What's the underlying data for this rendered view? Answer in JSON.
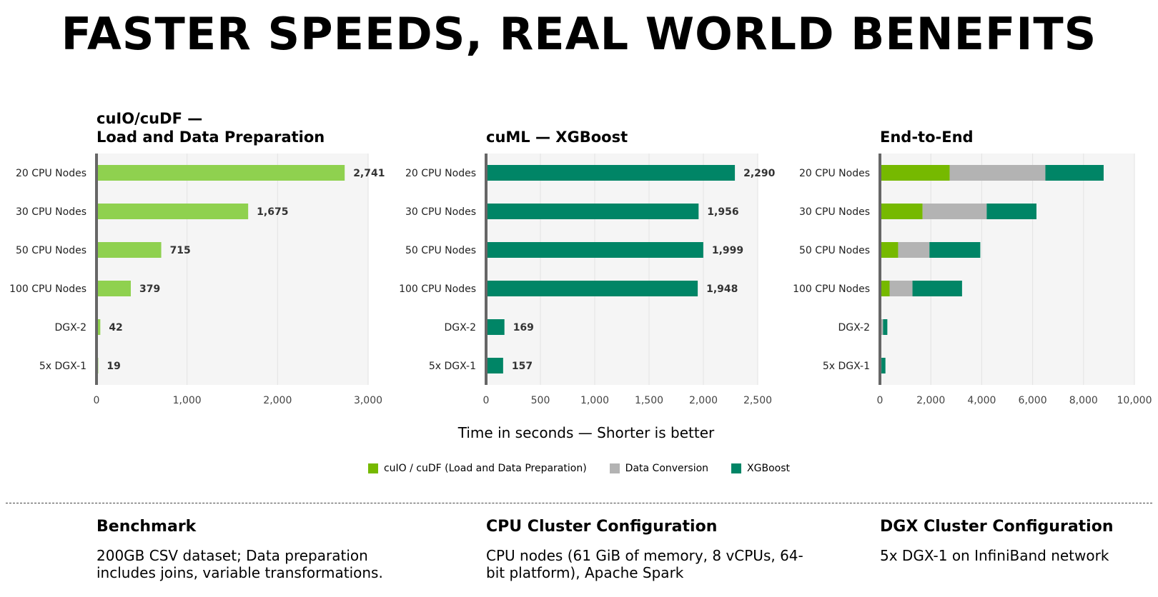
{
  "title": "FASTER SPEEDS, REAL WORLD BENEFITS",
  "x_caption": "Time in seconds — Shorter is better",
  "colors": {
    "load": "#8fd14f",
    "load_stack": "#76b900",
    "conversion": "#b3b3b3",
    "xgboost": "#008566",
    "plot_bg": "#f5f5f5",
    "axis": "#666666"
  },
  "legend": [
    {
      "label": "cuIO / cuDF (Load and Data Preparation)",
      "color": "#76b900"
    },
    {
      "label": "Data Conversion",
      "color": "#b3b3b3"
    },
    {
      "label": "XGBoost",
      "color": "#008566"
    }
  ],
  "chart_data": [
    {
      "type": "bar",
      "orientation": "horizontal",
      "title_line1": "cuIO/cuDF —",
      "title_line2": "Load and Data Preparation",
      "categories": [
        "20 CPU Nodes",
        "30 CPU Nodes",
        "50 CPU Nodes",
        "100 CPU Nodes",
        "DGX-2",
        "5x DGX-1"
      ],
      "values": [
        2741,
        1675,
        715,
        379,
        42,
        19
      ],
      "value_labels": [
        "2,741",
        "1,675",
        "715",
        "379",
        "42",
        "19"
      ],
      "xlim": [
        0,
        3000
      ],
      "xticks": [
        0,
        1000,
        2000,
        3000
      ],
      "xtick_labels": [
        "0",
        "1,000",
        "2,000",
        "3,000"
      ],
      "color": "#8fd14f"
    },
    {
      "type": "bar",
      "orientation": "horizontal",
      "title_line1": "",
      "title_line2": "cuML — XGBoost",
      "categories": [
        "20 CPU Nodes",
        "30 CPU Nodes",
        "50 CPU Nodes",
        "100 CPU Nodes",
        "DGX-2",
        "5x DGX-1"
      ],
      "values": [
        2290,
        1956,
        1999,
        1948,
        169,
        157
      ],
      "value_labels": [
        "2,290",
        "1,956",
        "1,999",
        "1,948",
        "169",
        "157"
      ],
      "xlim": [
        0,
        2500
      ],
      "xticks": [
        0,
        500,
        1000,
        1500,
        2000,
        2500
      ],
      "xtick_labels": [
        "0",
        "500",
        "1,000",
        "1,500",
        "2,000",
        "2,500"
      ],
      "color": "#008566"
    },
    {
      "type": "bar",
      "orientation": "horizontal",
      "stacked": true,
      "title_line1": "",
      "title_line2": "End-to-End",
      "categories": [
        "20 CPU Nodes",
        "30 CPU Nodes",
        "50 CPU Nodes",
        "100 CPU Nodes",
        "DGX-2",
        "5x DGX-1"
      ],
      "series": [
        {
          "name": "cuIO / cuDF (Load and Data Preparation)",
          "values": [
            2741,
            1675,
            715,
            379,
            42,
            19
          ],
          "color": "#76b900"
        },
        {
          "name": "Data Conversion",
          "values": [
            3760,
            2520,
            1230,
            900,
            80,
            40
          ],
          "color": "#b3b3b3"
        },
        {
          "name": "XGBoost",
          "values": [
            2290,
            1956,
            1999,
            1948,
            169,
            157
          ],
          "color": "#008566"
        }
      ],
      "xlim": [
        0,
        10000
      ],
      "xticks": [
        0,
        2000,
        4000,
        6000,
        8000,
        10000
      ],
      "xtick_labels": [
        "0",
        "2,000",
        "4,000",
        "6,000",
        "8,000",
        "10,000"
      ]
    }
  ],
  "info": [
    {
      "heading": "Benchmark",
      "text": "200GB CSV dataset; Data preparation includes joins, variable transformations."
    },
    {
      "heading": "CPU Cluster Configuration",
      "text": "CPU nodes (61 GiB of memory, 8 vCPUs, 64-bit platform), Apache Spark"
    },
    {
      "heading": "DGX Cluster Configuration",
      "text": "5x DGX-1 on InfiniBand network"
    }
  ]
}
